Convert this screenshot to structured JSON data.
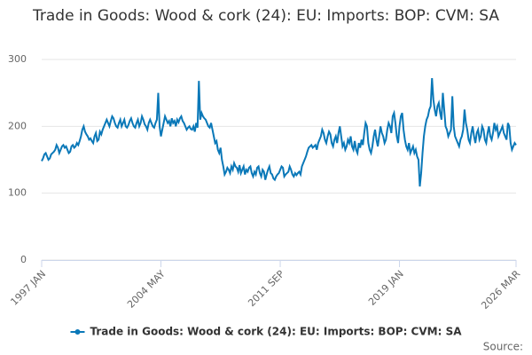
{
  "chart_data": {
    "type": "line",
    "title": "Trade in Goods: Wood & cork (24): EU: Imports: BOP: CVM: SA",
    "source": "Source:",
    "categories": [
      "1997 JAN",
      null,
      null,
      null,
      null,
      null,
      null,
      null,
      null,
      null,
      null,
      null,
      null,
      null,
      null,
      null,
      null,
      null,
      null,
      null,
      null,
      null,
      null,
      null,
      null,
      null,
      null,
      null,
      null,
      null,
      null,
      null,
      null,
      null,
      null,
      null,
      null,
      null,
      null,
      null,
      null,
      null,
      null,
      null,
      null,
      null,
      null,
      null,
      null,
      null,
      null,
      null,
      null,
      null,
      null,
      null,
      null,
      null,
      null,
      null,
      null,
      null,
      null,
      null,
      null,
      null,
      null,
      null,
      null,
      null,
      null,
      null,
      null,
      null,
      null,
      null,
      null,
      null,
      null,
      null,
      null,
      null,
      null,
      null,
      null,
      null,
      null,
      null,
      "2004 MAY",
      null,
      null,
      null,
      null,
      null,
      null,
      null,
      null,
      null,
      null,
      null,
      null,
      null,
      null,
      null,
      null,
      null,
      null,
      null,
      null,
      null,
      null,
      null,
      null,
      null,
      null,
      null,
      null,
      null,
      null,
      null,
      null,
      null,
      null,
      null,
      null,
      null,
      null,
      null,
      null,
      null,
      null,
      null,
      null,
      null,
      null,
      null,
      null,
      null,
      null,
      null,
      null,
      null,
      null,
      null,
      null,
      null,
      null,
      null,
      null,
      null,
      null,
      null,
      null,
      null,
      null,
      null,
      null,
      null,
      null,
      null,
      null,
      null,
      null,
      null,
      null,
      null,
      null,
      null,
      null,
      null,
      null,
      null,
      null,
      null,
      null,
      null,
      "2011 SEP",
      null,
      null,
      null,
      null,
      null,
      null,
      null,
      null,
      null,
      null,
      null,
      null,
      null,
      null,
      null,
      null,
      null,
      null,
      null,
      null,
      null,
      null,
      null,
      null,
      null,
      null,
      null,
      null,
      null,
      null,
      null,
      null,
      null,
      null,
      null,
      null,
      null,
      null,
      null,
      null,
      null,
      null,
      null,
      null,
      null,
      null,
      null,
      null,
      null,
      null,
      null,
      null,
      null,
      null,
      null,
      null,
      null,
      null,
      null,
      null,
      null,
      null,
      null,
      null,
      null,
      null,
      null,
      null,
      null,
      null,
      null,
      null,
      null,
      null,
      null,
      null,
      null,
      null,
      null,
      null,
      null,
      null,
      null,
      null,
      null,
      null,
      null,
      "2019 JAN",
      null,
      null,
      null,
      null,
      null,
      null,
      null,
      null,
      null,
      null,
      null,
      null,
      null,
      null,
      null,
      null,
      null,
      null,
      null,
      null,
      null,
      null,
      null,
      null,
      null,
      null,
      null,
      null,
      null,
      null,
      null,
      null,
      null,
      null,
      null,
      null,
      null,
      null,
      null,
      null,
      null,
      null,
      null,
      null,
      null,
      null,
      null,
      null,
      null,
      null,
      null,
      null,
      null,
      null,
      null,
      null,
      null,
      null,
      null,
      null,
      null,
      null,
      null,
      null,
      null,
      null,
      null,
      null,
      null,
      null,
      null,
      null,
      null,
      null,
      null,
      null,
      null,
      null,
      null,
      null,
      null,
      null,
      null,
      null,
      null,
      "2026 MAR"
    ],
    "series": [
      {
        "name": "Trade in Goods: Wood & cork (24): EU: Imports: BOP: CVM: SA",
        "color": "#0a78b8",
        "values": [
          148,
          152,
          158,
          160,
          155,
          150,
          152,
          158,
          160,
          162,
          165,
          172,
          168,
          160,
          165,
          170,
          172,
          168,
          170,
          165,
          160,
          162,
          170,
          172,
          168,
          170,
          175,
          172,
          178,
          185,
          195,
          200,
          192,
          188,
          185,
          180,
          182,
          178,
          175,
          185,
          190,
          178,
          180,
          192,
          188,
          195,
          200,
          205,
          210,
          205,
          200,
          208,
          215,
          212,
          205,
          200,
          198,
          205,
          210,
          200,
          205,
          210,
          200,
          198,
          202,
          208,
          212,
          205,
          200,
          198,
          205,
          210,
          200,
          205,
          215,
          210,
          203,
          200,
          195,
          205,
          210,
          205,
          200,
          198,
          205,
          210,
          250,
          200,
          185,
          195,
          205,
          215,
          210,
          205,
          208,
          200,
          212,
          205,
          208,
          200,
          210,
          206,
          212,
          215,
          208,
          205,
          200,
          195,
          198,
          200,
          196,
          195,
          200,
          192,
          205,
          198,
          268,
          210,
          220,
          215,
          212,
          210,
          205,
          200,
          198,
          205,
          195,
          185,
          175,
          178,
          165,
          160,
          168,
          150,
          140,
          128,
          132,
          138,
          135,
          130,
          140,
          135,
          145,
          140,
          138,
          132,
          142,
          130,
          135,
          140,
          128,
          135,
          132,
          138,
          140,
          130,
          125,
          132,
          128,
          138,
          140,
          130,
          125,
          135,
          132,
          120,
          128,
          135,
          140,
          130,
          128,
          122,
          120,
          125,
          128,
          130,
          135,
          140,
          138,
          125,
          128,
          130,
          132,
          140,
          135,
          128,
          125,
          130,
          127,
          130,
          132,
          128,
          140,
          145,
          150,
          155,
          162,
          168,
          170,
          172,
          168,
          170,
          172,
          165,
          175,
          180,
          185,
          195,
          190,
          180,
          175,
          185,
          192,
          188,
          175,
          170,
          180,
          185,
          175,
          190,
          200,
          185,
          170,
          175,
          165,
          170,
          180,
          175,
          185,
          170,
          165,
          178,
          165,
          160,
          175,
          168,
          180,
          172,
          190,
          205,
          200,
          175,
          165,
          160,
          170,
          185,
          195,
          180,
          170,
          185,
          200,
          190,
          185,
          175,
          180,
          195,
          205,
          200,
          190,
          215,
          220,
          205,
          185,
          175,
          200,
          215,
          220,
          195,
          180,
          170,
          165,
          175,
          160,
          165,
          170,
          160,
          165,
          155,
          150,
          110,
          130,
          160,
          185,
          200,
          210,
          215,
          225,
          230,
          272,
          240,
          225,
          215,
          230,
          235,
          220,
          210,
          250,
          225,
          200,
          195,
          185,
          190,
          195,
          245,
          200,
          185,
          180,
          175,
          170,
          180,
          185,
          195,
          225,
          205,
          195,
          180,
          175,
          190,
          200,
          185,
          175,
          190,
          195,
          180,
          185,
          200,
          195,
          180,
          175,
          190,
          200,
          185,
          180,
          190,
          205,
          195,
          200,
          185,
          190,
          195,
          200,
          190,
          185,
          180,
          205,
          200,
          175,
          165,
          170,
          175,
          172
        ]
      }
    ],
    "ylim": [
      0,
      300
    ],
    "yticks": [
      0,
      100,
      200,
      300
    ],
    "grid": true,
    "legend": "bottom"
  }
}
